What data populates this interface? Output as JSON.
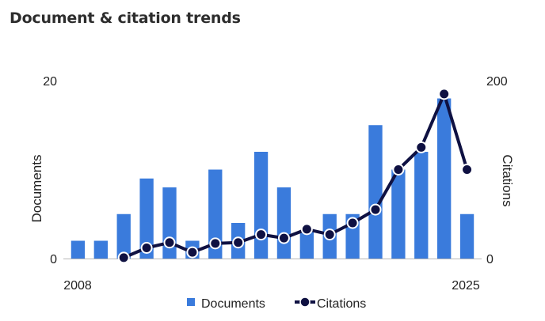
{
  "page_title": "Document & citation trends",
  "colors": {
    "documents": "#3a7bdc",
    "citations": "#0f1142",
    "axis": "#b7b7b7"
  },
  "chart_data": {
    "type": "bar",
    "title": "Document & citation trends",
    "x_tick_labels": [
      "2008",
      "2025"
    ],
    "x": [
      2008,
      2009,
      2010,
      2011,
      2012,
      2013,
      2014,
      2015,
      2016,
      2017,
      2018,
      2019,
      2020,
      2021,
      2022,
      2023,
      2024,
      2025
    ],
    "series": [
      {
        "name": "Documents",
        "type": "bar",
        "axis": "left",
        "values": [
          2,
          2,
          5,
          9,
          8,
          2,
          10,
          4,
          12,
          8,
          3,
          5,
          5,
          15,
          10,
          12,
          18,
          5
        ]
      },
      {
        "name": "Citations",
        "type": "line",
        "axis": "right",
        "values": [
          null,
          null,
          1,
          12,
          18,
          7,
          17,
          18,
          27,
          23,
          33,
          27,
          40,
          55,
          100,
          125,
          185,
          100
        ]
      }
    ],
    "y_left": {
      "label": "Documents",
      "ylim": [
        0,
        20
      ],
      "ticks": [
        "0",
        "20"
      ]
    },
    "y_right": {
      "label": "Citations",
      "ylim": [
        0,
        200
      ],
      "ticks": [
        "0",
        "200"
      ]
    },
    "legend": {
      "placement": "bottom-center",
      "entries": [
        "Documents",
        "Citations"
      ]
    },
    "grid": false
  }
}
